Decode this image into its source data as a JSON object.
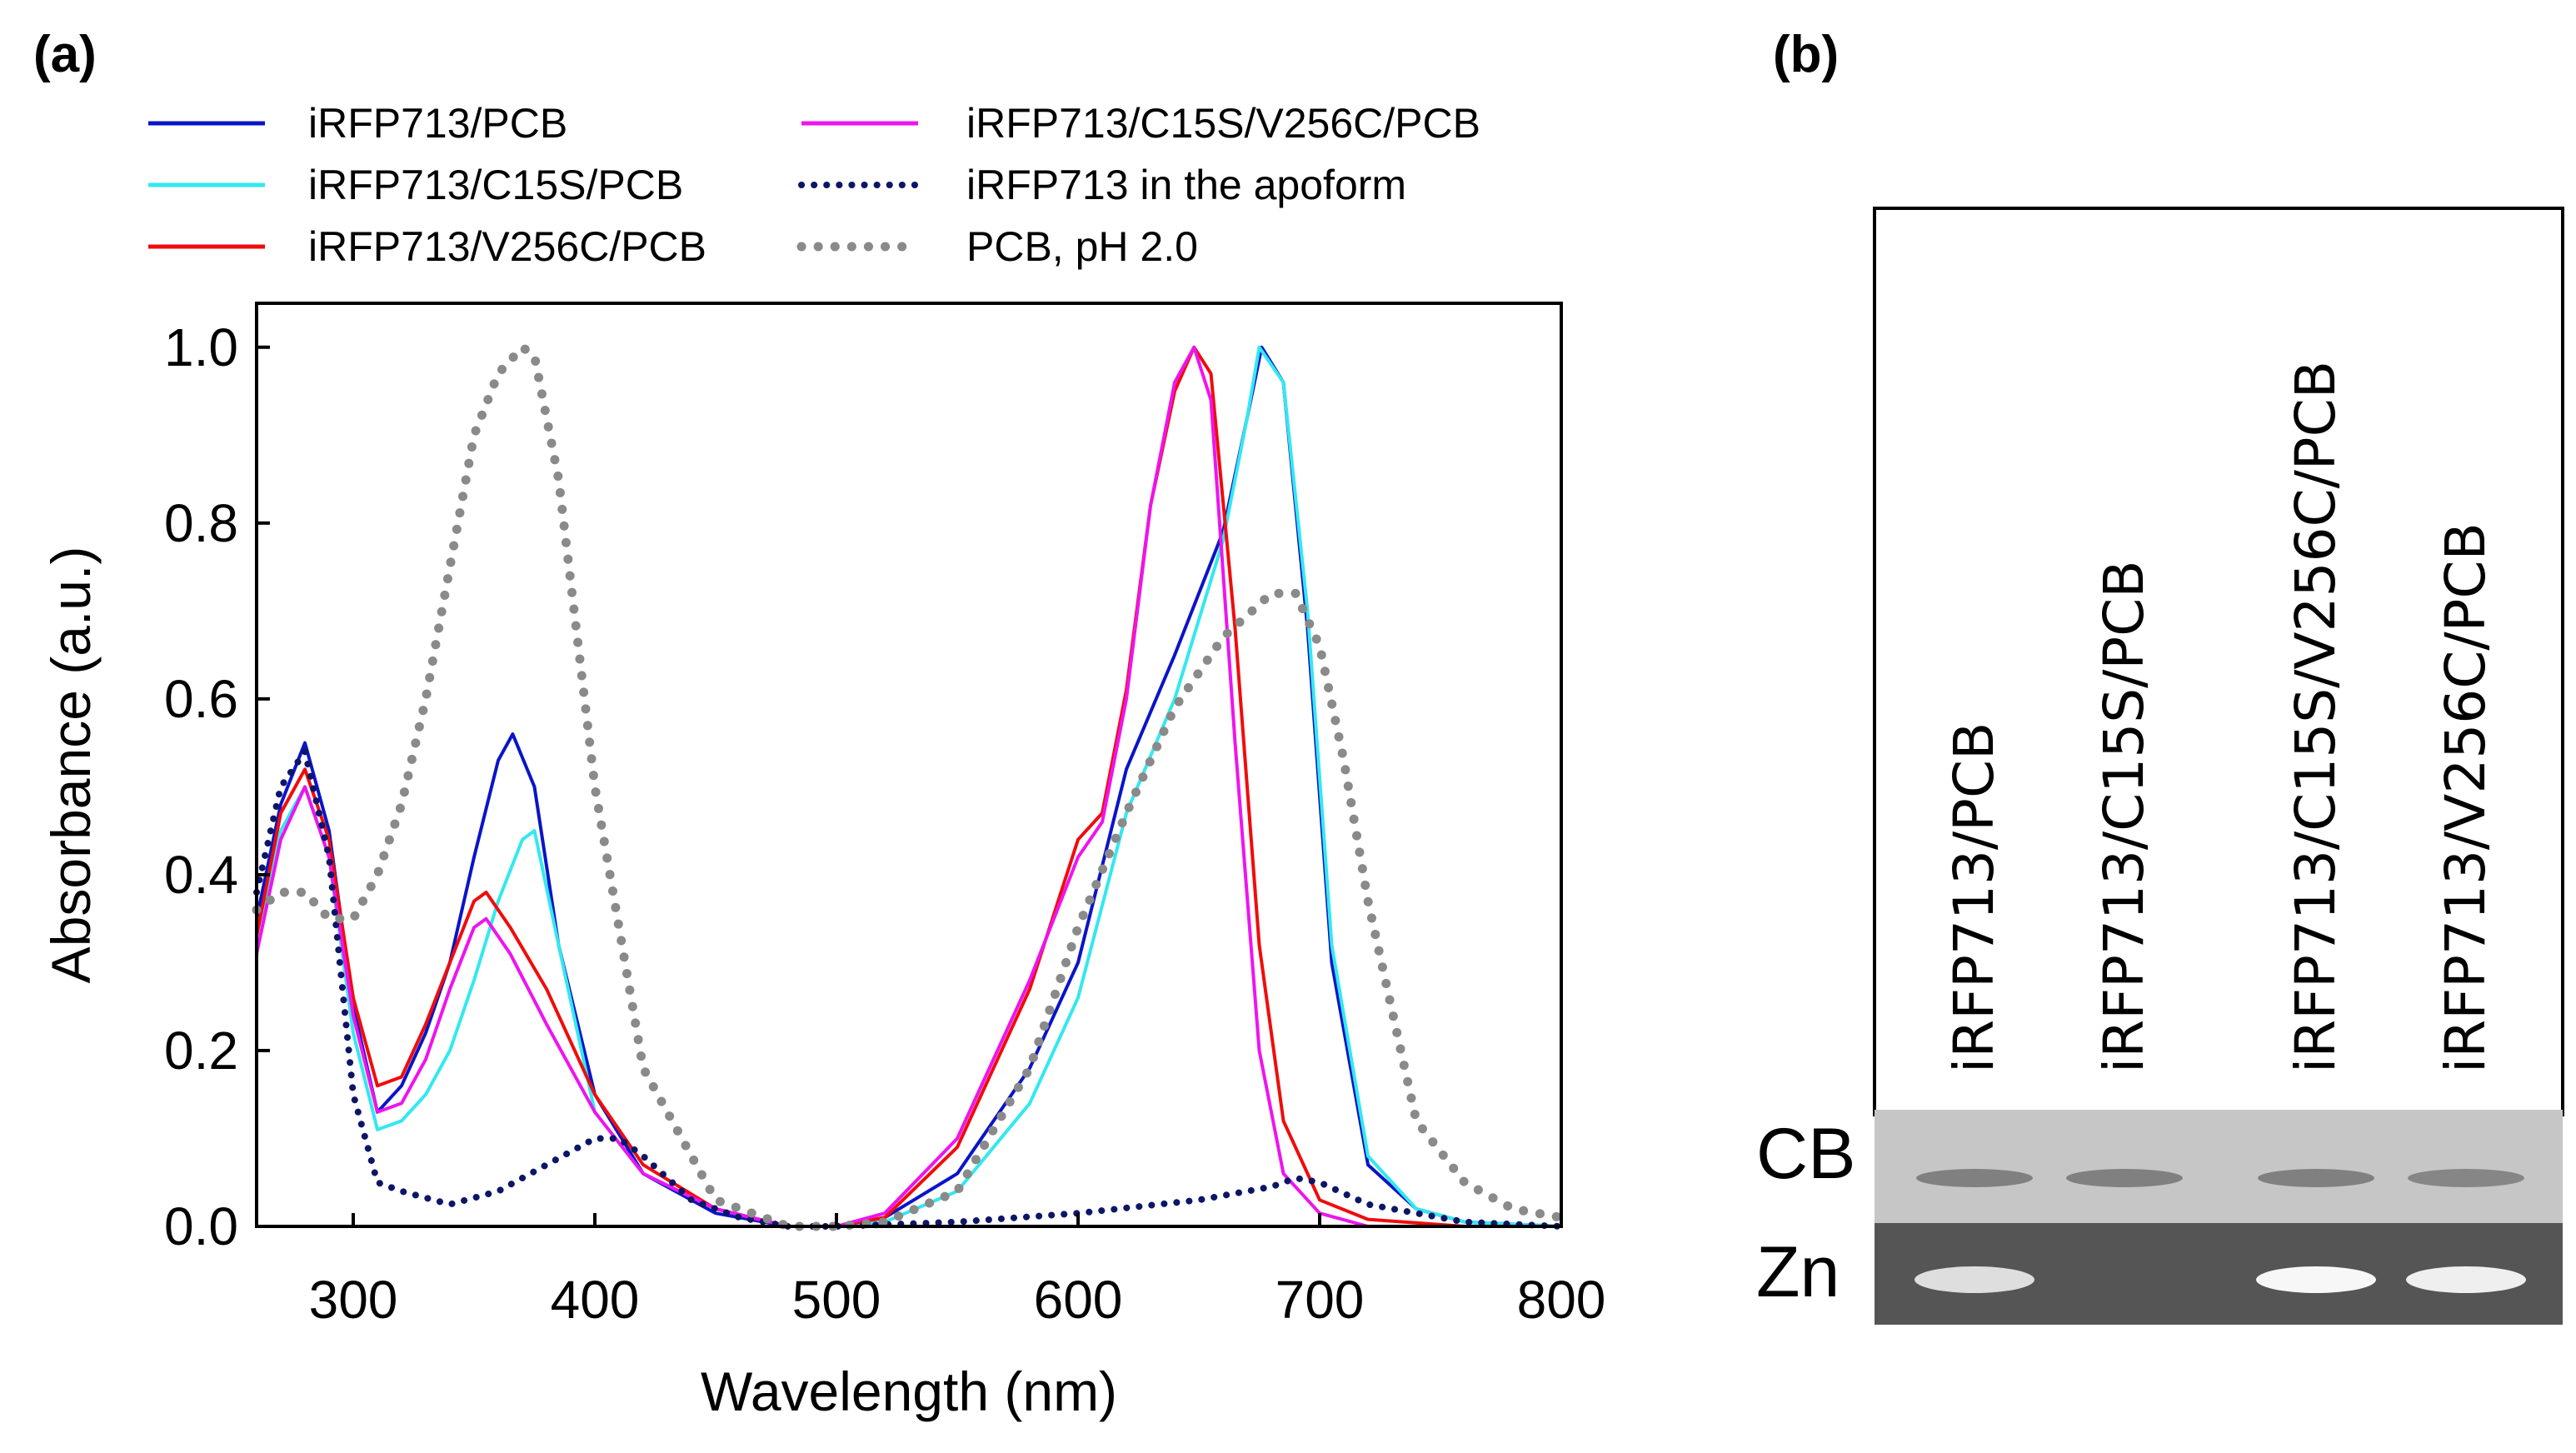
{
  "panel_a": {
    "label": "(a)"
  },
  "panel_b": {
    "label": "(b)",
    "lanes": [
      "iRFP713/PCB",
      "iRFP713/C15S/PCB",
      "iRFP713/C15S/V256C/PCB",
      "iRFP713/V256C/PCB"
    ],
    "rows": [
      "CB",
      "Zn"
    ],
    "cb_band_intensity": [
      0.6,
      0.6,
      0.6,
      0.55
    ],
    "zn_band_intensity": [
      0.8,
      0.05,
      0.95,
      0.9
    ],
    "colors": {
      "cb_background": "#c6c6c6",
      "zn_background": "#555555"
    }
  },
  "chart_data": {
    "type": "line",
    "title": "",
    "xlabel": "Wavelength (nm)",
    "ylabel": "Absorbance (a.u.)",
    "xlim": [
      260,
      800
    ],
    "ylim": [
      0,
      1.05
    ],
    "xticks": [
      300,
      400,
      500,
      600,
      700,
      800
    ],
    "yticks": [
      0.0,
      0.2,
      0.4,
      0.6,
      0.8,
      1.0
    ],
    "xtick_labels": [
      "300",
      "400",
      "500",
      "600",
      "700",
      "800"
    ],
    "ytick_labels": [
      "0.0",
      "0.2",
      "0.4",
      "0.6",
      "0.8",
      "1.0"
    ],
    "legend_position": "top",
    "series": [
      {
        "name": "iRFP713/PCB",
        "color": "#0a14c8",
        "style": "solid",
        "x": [
          260,
          270,
          280,
          290,
          300,
          310,
          320,
          330,
          340,
          350,
          360,
          366,
          375,
          385,
          400,
          420,
          450,
          480,
          500,
          520,
          550,
          580,
          600,
          620,
          640,
          660,
          670,
          676,
          685,
          695,
          705,
          720,
          740,
          760,
          800
        ],
        "y": [
          0.35,
          0.48,
          0.55,
          0.45,
          0.25,
          0.13,
          0.16,
          0.22,
          0.3,
          0.42,
          0.53,
          0.56,
          0.5,
          0.32,
          0.15,
          0.06,
          0.015,
          0.0,
          0.0,
          0.01,
          0.06,
          0.18,
          0.3,
          0.52,
          0.65,
          0.79,
          0.92,
          1.0,
          0.96,
          0.68,
          0.3,
          0.07,
          0.02,
          0.005,
          0.0
        ]
      },
      {
        "name": "iRFP713/C15S/PCB",
        "color": "#33e8f0",
        "style": "solid",
        "x": [
          260,
          270,
          280,
          290,
          300,
          310,
          320,
          330,
          340,
          350,
          360,
          370,
          375,
          385,
          400,
          420,
          450,
          480,
          500,
          520,
          550,
          580,
          600,
          620,
          640,
          660,
          670,
          675,
          685,
          695,
          705,
          720,
          740,
          760,
          800
        ],
        "y": [
          0.33,
          0.45,
          0.5,
          0.42,
          0.22,
          0.11,
          0.12,
          0.15,
          0.2,
          0.28,
          0.37,
          0.44,
          0.45,
          0.32,
          0.13,
          0.06,
          0.02,
          0.0,
          0.0,
          0.005,
          0.04,
          0.14,
          0.26,
          0.47,
          0.6,
          0.78,
          0.92,
          1.0,
          0.96,
          0.7,
          0.32,
          0.08,
          0.02,
          0.005,
          0.0
        ]
      },
      {
        "name": "iRFP713/V256C/PCB",
        "color": "#f00c0c",
        "style": "solid",
        "x": [
          260,
          270,
          280,
          290,
          300,
          310,
          320,
          330,
          340,
          350,
          355,
          365,
          380,
          400,
          420,
          450,
          480,
          500,
          520,
          550,
          580,
          600,
          610,
          620,
          630,
          640,
          648,
          655,
          665,
          675,
          685,
          700,
          720,
          760,
          800
        ],
        "y": [
          0.33,
          0.47,
          0.52,
          0.44,
          0.26,
          0.16,
          0.17,
          0.23,
          0.3,
          0.37,
          0.38,
          0.34,
          0.27,
          0.15,
          0.07,
          0.02,
          0.0,
          0.0,
          0.01,
          0.09,
          0.27,
          0.44,
          0.47,
          0.61,
          0.82,
          0.95,
          1.0,
          0.97,
          0.68,
          0.32,
          0.12,
          0.03,
          0.008,
          0.0,
          0.0
        ]
      },
      {
        "name": "iRFP713/C15S/V256C/PCB",
        "color": "#ee14ee",
        "style": "solid",
        "x": [
          260,
          270,
          280,
          290,
          300,
          310,
          320,
          330,
          340,
          350,
          355,
          365,
          380,
          400,
          420,
          450,
          480,
          500,
          520,
          550,
          580,
          600,
          610,
          620,
          630,
          640,
          648,
          655,
          665,
          675,
          685,
          700,
          720,
          760,
          800
        ],
        "y": [
          0.31,
          0.44,
          0.5,
          0.42,
          0.24,
          0.13,
          0.14,
          0.19,
          0.27,
          0.34,
          0.35,
          0.31,
          0.23,
          0.13,
          0.06,
          0.02,
          0.0,
          0.0,
          0.015,
          0.1,
          0.28,
          0.42,
          0.46,
          0.6,
          0.82,
          0.96,
          1.0,
          0.94,
          0.55,
          0.2,
          0.06,
          0.015,
          0.0,
          0.0,
          0.0
        ]
      },
      {
        "name": "iRFP713 in the apoform",
        "color": "#0c1666",
        "style": "dotted",
        "x": [
          260,
          270,
          280,
          290,
          300,
          310,
          320,
          340,
          360,
          380,
          400,
          410,
          420,
          440,
          460,
          480,
          500,
          550,
          600,
          650,
          680,
          690,
          700,
          720,
          760,
          800
        ],
        "y": [
          0.38,
          0.5,
          0.54,
          0.42,
          0.15,
          0.05,
          0.04,
          0.025,
          0.04,
          0.07,
          0.1,
          0.1,
          0.08,
          0.03,
          0.01,
          0.0,
          0.0,
          0.005,
          0.015,
          0.03,
          0.045,
          0.055,
          0.05,
          0.025,
          0.005,
          0.0
        ]
      },
      {
        "name": "PCB, pH 2.0",
        "color": "#8a8a8a",
        "style": "dotted",
        "x": [
          260,
          270,
          280,
          290,
          300,
          310,
          320,
          330,
          340,
          350,
          360,
          370,
          375,
          385,
          400,
          420,
          450,
          480,
          500,
          520,
          550,
          580,
          600,
          620,
          640,
          660,
          680,
          690,
          700,
          710,
          720,
          740,
          760,
          780,
          800
        ],
        "y": [
          0.36,
          0.38,
          0.38,
          0.35,
          0.35,
          0.4,
          0.48,
          0.6,
          0.75,
          0.9,
          0.97,
          1.0,
          0.99,
          0.85,
          0.5,
          0.18,
          0.03,
          0.0,
          0.0,
          0.005,
          0.04,
          0.18,
          0.34,
          0.47,
          0.59,
          0.67,
          0.72,
          0.72,
          0.66,
          0.53,
          0.37,
          0.12,
          0.05,
          0.02,
          0.01
        ]
      }
    ]
  }
}
